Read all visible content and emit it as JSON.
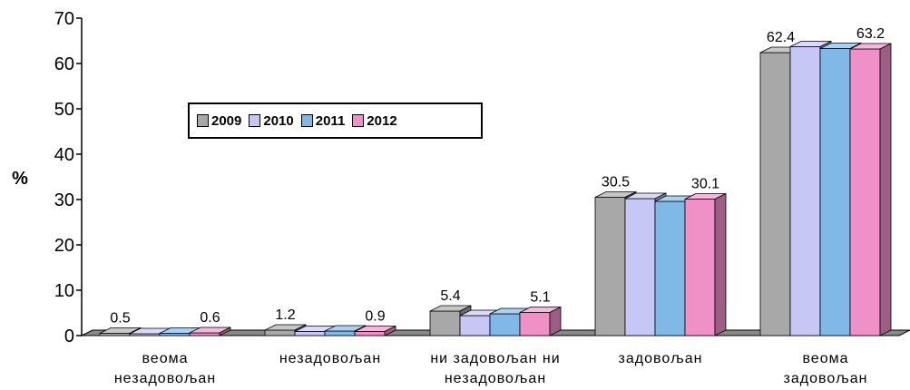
{
  "chart_data": {
    "type": "bar",
    "categories": [
      [
        "веома",
        "незадовољан"
      ],
      [
        "незадовољан"
      ],
      [
        "ни задовољан ни",
        "незадовољан"
      ],
      [
        "задовољан"
      ],
      [
        "веома",
        "задовољан"
      ]
    ],
    "series": [
      {
        "name": "2009",
        "values": [
          0.5,
          1.2,
          5.4,
          30.5,
          62.4
        ],
        "color": "#a8a8a8"
      },
      {
        "name": "2010",
        "values": [
          0.4,
          0.9,
          4.4,
          30.2,
          63.7
        ],
        "color": "#c7c7f5"
      },
      {
        "name": "2011",
        "values": [
          0.5,
          1.0,
          4.8,
          29.6,
          63.3
        ],
        "color": "#80b8e8"
      },
      {
        "name": "2012",
        "values": [
          0.6,
          0.9,
          5.1,
          30.1,
          63.2
        ],
        "color": "#f090c8"
      }
    ],
    "data_labels": [
      {
        "text": "0.5",
        "category": 0,
        "series": 0
      },
      {
        "text": "0.6",
        "category": 0,
        "series": 3
      },
      {
        "text": "1.2",
        "category": 1,
        "series": 0
      },
      {
        "text": "0.9",
        "category": 1,
        "series": 3
      },
      {
        "text": "5.4",
        "category": 2,
        "series": 0
      },
      {
        "text": "5.1",
        "category": 2,
        "series": 3
      },
      {
        "text": "30.5",
        "category": 3,
        "series": 0
      },
      {
        "text": "30.1",
        "category": 3,
        "series": 3
      },
      {
        "text": "62.4",
        "category": 4,
        "series": 0
      },
      {
        "text": "63.2",
        "category": 4,
        "series": 3
      }
    ],
    "ylabel": "%",
    "yticks": [
      "0",
      "10",
      "20",
      "30",
      "40",
      "50",
      "60",
      "70"
    ],
    "ylim": [
      0,
      70
    ],
    "grid": false,
    "legend_position": "top-left",
    "style": "3d"
  }
}
